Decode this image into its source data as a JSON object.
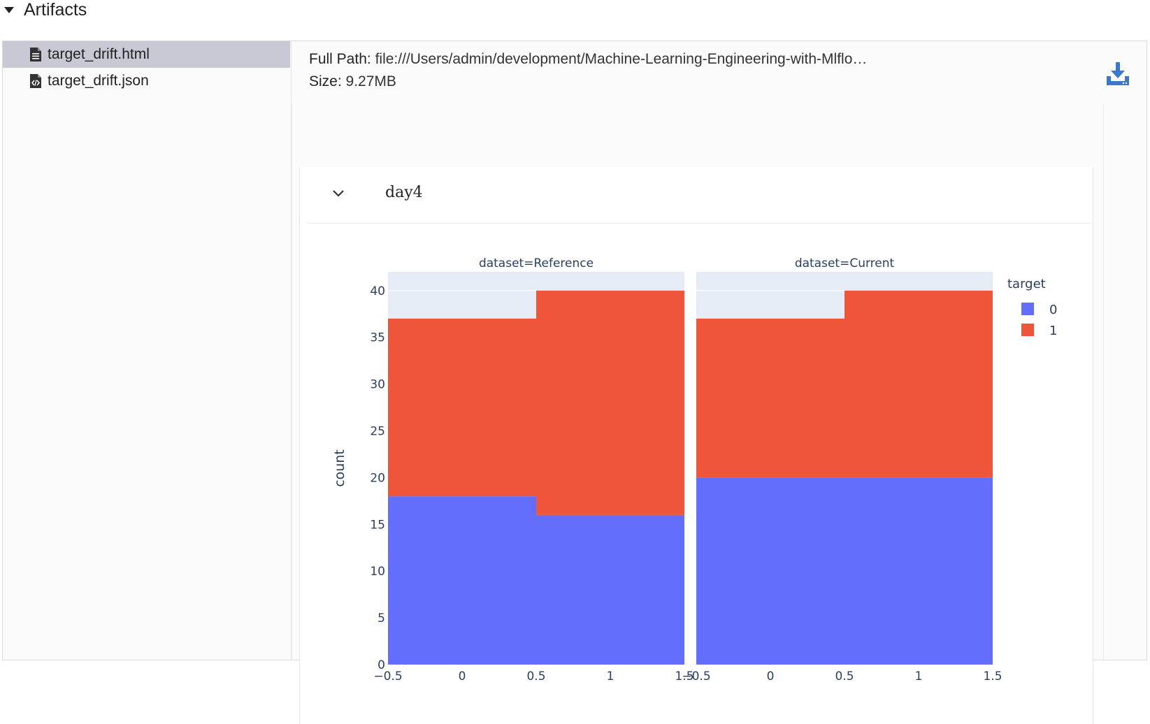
{
  "section": {
    "title": "Artifacts"
  },
  "tree": {
    "items": [
      {
        "label": "target_drift.html",
        "selected": true,
        "icon": "file-text-icon"
      },
      {
        "label": "target_drift.json",
        "selected": false,
        "icon": "file-code-icon"
      }
    ]
  },
  "detail": {
    "path_label": "Full Path:",
    "path_value": "file:///Users/admin/development/Machine-Learning-Engineering-with-Mlflo…",
    "size_label": "Size:",
    "size_value": "9.27MB",
    "download_icon": "download-icon"
  },
  "viewer": {
    "section_title": "day4",
    "chevron_icon": "chevron-down-icon"
  },
  "colors": {
    "target_0": "#636efa",
    "target_1": "#ef553b",
    "plot_bg": "#e5ecf6",
    "selected_row": "#c9c8d5"
  },
  "chart_data": {
    "type": "bar",
    "barmode": "stack",
    "legend_title": "target",
    "legend_placement": "right",
    "ylabel": "count",
    "ylim": [
      0,
      42
    ],
    "yticks": [
      0,
      5,
      10,
      15,
      20,
      25,
      30,
      35,
      40
    ],
    "xlim": [
      -0.5,
      1.5
    ],
    "xtick_labels": [
      "−0.5",
      "0",
      "0.5",
      "1",
      "1.5"
    ],
    "xtick_values": [
      -0.5,
      0,
      0.5,
      1,
      1.5
    ],
    "panels": [
      {
        "title": "dataset=Reference",
        "bins": [
          {
            "x0": -0.5,
            "x1": 0.5,
            "target_0": 18,
            "target_1": 19
          },
          {
            "x0": 0.5,
            "x1": 1.5,
            "target_0": 16,
            "target_1": 24
          }
        ]
      },
      {
        "title": "dataset=Current",
        "bins": [
          {
            "x0": -0.5,
            "x1": 0.5,
            "target_0": 20,
            "target_1": 17
          },
          {
            "x0": 0.5,
            "x1": 1.5,
            "target_0": 20,
            "target_1": 20
          }
        ]
      }
    ],
    "series": [
      {
        "name": "0"
      },
      {
        "name": "1"
      }
    ]
  }
}
